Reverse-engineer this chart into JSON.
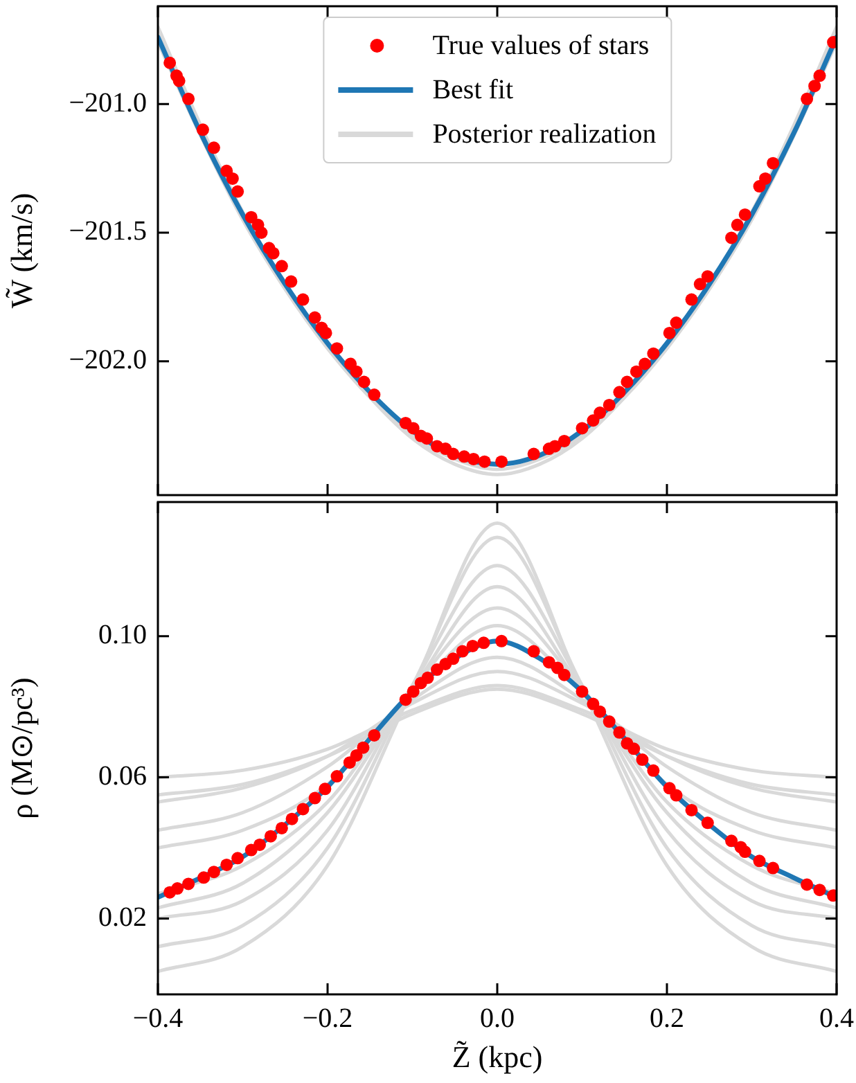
{
  "chart_data": [
    {
      "type": "line",
      "ylabel": "W̃ (km/s)",
      "xlim": [
        -0.4,
        0.4
      ],
      "xticks": [
        {
          "value": -0.4,
          "label": null
        },
        {
          "value": -0.2,
          "label": null
        },
        {
          "value": 0,
          "label": null
        },
        {
          "value": 0.2,
          "label": null
        },
        {
          "value": 0.4,
          "label": null
        }
      ],
      "ylim": [
        -202.52,
        -200.62
      ],
      "yticks": [
        {
          "value": -201,
          "label": "−201.0"
        },
        {
          "value": -201.5,
          "label": "−201.5"
        },
        {
          "value": -202,
          "label": "−202.0"
        }
      ],
      "tick_labels": "y",
      "legend": "top",
      "series": [
        {
          "name": "Posterior realization",
          "marker": "none",
          "color": "#d9d9d9",
          "x": [
            -0.4,
            -0.35,
            -0.3,
            -0.25,
            -0.2,
            -0.15,
            -0.1,
            -0.05,
            0,
            0.05,
            0.1,
            0.15,
            0.2,
            0.25,
            0.3,
            0.35,
            0.4
          ],
          "values": [
            -200.7,
            -201.08,
            -201.42,
            -201.7,
            -201.94,
            -202.14,
            -202.3,
            -202.4,
            -202.44,
            -202.4,
            -202.3,
            -202.14,
            -201.94,
            -201.7,
            -201.42,
            -201.08,
            -200.7
          ]
        },
        {
          "type": "line",
          "marker": "none",
          "color": "#d9d9d9",
          "x": [
            -0.4,
            -0.35,
            -0.3,
            -0.25,
            -0.2,
            -0.15,
            -0.1,
            -0.05,
            0,
            0.05,
            0.1,
            0.15,
            0.2,
            0.25,
            0.3,
            0.35,
            0.4
          ],
          "values": [
            -200.76,
            -201.12,
            -201.45,
            -201.72,
            -201.95,
            -202.14,
            -202.29,
            -202.38,
            -202.42,
            -202.38,
            -202.29,
            -202.14,
            -201.95,
            -201.72,
            -201.45,
            -201.12,
            -200.76
          ]
        },
        {
          "name": "Best fit",
          "type": "line",
          "marker": "none",
          "color": "#1f77b4",
          "x": [
            -0.4,
            -0.35,
            -0.3,
            -0.25,
            -0.2,
            -0.15,
            -0.1,
            -0.05,
            0,
            0.05,
            0.1,
            0.15,
            0.2,
            0.25,
            0.3,
            0.35,
            0.4
          ],
          "values": [
            -200.74,
            -201.11,
            -201.43,
            -201.7,
            -201.93,
            -202.12,
            -202.27,
            -202.365,
            -202.4,
            -202.365,
            -202.27,
            -202.12,
            -201.93,
            -201.7,
            -201.43,
            -201.11,
            -200.74
          ]
        },
        {
          "name": "True values of stars",
          "type": "scatter",
          "marker": "circle",
          "color": "#ff0000",
          "x": [
            -0.386,
            -0.378,
            -0.375,
            -0.364,
            -0.347,
            -0.334,
            -0.319,
            -0.312,
            -0.306,
            -0.29,
            -0.282,
            -0.278,
            -0.269,
            -0.264,
            -0.254,
            -0.243,
            -0.229,
            -0.215,
            -0.207,
            -0.202,
            -0.189,
            -0.173,
            -0.166,
            -0.157,
            -0.145,
            -0.108,
            -0.099,
            -0.09,
            -0.083,
            -0.071,
            -0.061,
            -0.052,
            -0.039,
            -0.028,
            -0.015,
            0.005,
            0.043,
            0.061,
            0.068,
            0.079,
            0.1,
            0.113,
            0.121,
            0.132,
            0.144,
            0.153,
            0.164,
            0.174,
            0.184,
            0.203,
            0.211,
            0.229,
            0.239,
            0.248,
            0.276,
            0.283,
            0.292,
            0.309,
            0.316,
            0.325,
            0.365,
            0.374,
            0.38,
            0.396
          ],
          "values": [
            -200.84,
            -200.89,
            -200.91,
            -200.98,
            -201.1,
            -201.17,
            -201.26,
            -201.29,
            -201.34,
            -201.44,
            -201.47,
            -201.5,
            -201.56,
            -201.58,
            -201.63,
            -201.69,
            -201.76,
            -201.83,
            -201.87,
            -201.89,
            -201.95,
            -202.01,
            -202.04,
            -202.08,
            -202.13,
            -202.24,
            -202.26,
            -202.29,
            -202.3,
            -202.33,
            -202.34,
            -202.36,
            -202.37,
            -202.38,
            -202.39,
            -202.39,
            -202.36,
            -202.34,
            -202.33,
            -202.31,
            -202.26,
            -202.23,
            -202.2,
            -202.17,
            -202.12,
            -202.08,
            -202.04,
            -202.01,
            -201.97,
            -201.89,
            -201.85,
            -201.76,
            -201.7,
            -201.67,
            -201.52,
            -201.47,
            -201.43,
            -201.32,
            -201.29,
            -201.23,
            -200.98,
            -200.93,
            -200.89,
            -200.76
          ]
        }
      ]
    },
    {
      "type": "line",
      "xlabel": "Z̃ (kpc)",
      "ylabel": "ρ (M⊙/pc³)",
      "xlim": [
        -0.4,
        0.4
      ],
      "xticks": [
        {
          "value": -0.4,
          "label": "−0.4"
        },
        {
          "value": -0.2,
          "label": "−0.2"
        },
        {
          "value": 0,
          "label": "0.0"
        },
        0.2,
        0.4
      ],
      "ylim": [
        -0.0015,
        0.138
      ],
      "yticks": [
        0.02,
        0.06,
        {
          "value": 0.1,
          "label": "0.10"
        }
      ],
      "series": [
        {
          "type": "line",
          "marker": "none",
          "color": "#d9d9d9",
          "x": [
            -0.4,
            -0.3,
            -0.2,
            -0.1,
            0,
            0.1,
            0.2,
            0.3,
            0.4
          ],
          "values": [
            0.005,
            0.012,
            0.035,
            0.085,
            0.132,
            0.085,
            0.035,
            0.012,
            0.005
          ]
        },
        {
          "type": "line",
          "marker": "none",
          "color": "#d9d9d9",
          "x": [
            -0.4,
            -0.3,
            -0.2,
            -0.1,
            0,
            0.1,
            0.2,
            0.3,
            0.4
          ],
          "values": [
            0.012,
            0.018,
            0.04,
            0.086,
            0.128,
            0.086,
            0.04,
            0.018,
            0.012
          ]
        },
        {
          "type": "line",
          "marker": "none",
          "color": "#d9d9d9",
          "x": [
            -0.4,
            -0.3,
            -0.2,
            -0.1,
            0,
            0.1,
            0.2,
            0.3,
            0.4
          ],
          "values": [
            0.02,
            0.025,
            0.045,
            0.086,
            0.12,
            0.086,
            0.045,
            0.025,
            0.02
          ]
        },
        {
          "type": "line",
          "marker": "none",
          "color": "#d9d9d9",
          "x": [
            -0.4,
            -0.3,
            -0.2,
            -0.1,
            0,
            0.1,
            0.2,
            0.3,
            0.4
          ],
          "values": [
            0.023,
            0.03,
            0.05,
            0.085,
            0.114,
            0.085,
            0.05,
            0.03,
            0.023
          ]
        },
        {
          "type": "line",
          "marker": "none",
          "color": "#d9d9d9",
          "x": [
            -0.4,
            -0.3,
            -0.2,
            -0.1,
            0,
            0.1,
            0.2,
            0.3,
            0.4
          ],
          "values": [
            0.027,
            0.035,
            0.053,
            0.085,
            0.108,
            0.085,
            0.053,
            0.035,
            0.027
          ]
        },
        {
          "type": "line",
          "marker": "none",
          "color": "#d9d9d9",
          "x": [
            -0.4,
            -0.3,
            -0.2,
            -0.1,
            0,
            0.1,
            0.2,
            0.3,
            0.4
          ],
          "values": [
            0.04,
            0.045,
            0.058,
            0.084,
            0.103,
            0.084,
            0.058,
            0.045,
            0.04
          ]
        },
        {
          "type": "line",
          "marker": "none",
          "color": "#d9d9d9",
          "x": [
            -0.4,
            -0.3,
            -0.2,
            -0.1,
            0,
            0.1,
            0.2,
            0.3,
            0.4
          ],
          "values": [
            0.045,
            0.05,
            0.063,
            0.082,
            0.094,
            0.082,
            0.063,
            0.05,
            0.045
          ]
        },
        {
          "type": "line",
          "marker": "none",
          "color": "#d9d9d9",
          "x": [
            -0.4,
            -0.3,
            -0.2,
            -0.1,
            0,
            0.1,
            0.2,
            0.3,
            0.4
          ],
          "values": [
            0.053,
            0.057,
            0.066,
            0.081,
            0.09,
            0.081,
            0.066,
            0.057,
            0.053
          ]
        },
        {
          "type": "line",
          "marker": "none",
          "color": "#d9d9d9",
          "x": [
            -0.4,
            -0.3,
            -0.2,
            -0.1,
            0,
            0.1,
            0.2,
            0.3,
            0.4
          ],
          "values": [
            0.06,
            0.062,
            0.068,
            0.079,
            0.086,
            0.079,
            0.068,
            0.062,
            0.06
          ]
        },
        {
          "type": "line",
          "marker": "none",
          "color": "#d9d9d9",
          "x": [
            -0.4,
            -0.3,
            -0.2,
            -0.1,
            0,
            0.1,
            0.2,
            0.3,
            0.4
          ],
          "values": [
            0.055,
            0.058,
            0.066,
            0.078,
            0.085,
            0.078,
            0.066,
            0.058,
            0.055
          ]
        },
        {
          "type": "line",
          "marker": "none",
          "color": "#1f77b4",
          "x": [
            -0.4,
            -0.35,
            -0.3,
            -0.25,
            -0.2,
            -0.15,
            -0.1,
            -0.05,
            0,
            0.05,
            0.1,
            0.15,
            0.2,
            0.25,
            0.3,
            0.35,
            0.4
          ],
          "values": [
            0.026,
            0.0315,
            0.0375,
            0.0466,
            0.0573,
            0.071,
            0.0843,
            0.0937,
            0.0986,
            0.0937,
            0.0843,
            0.071,
            0.0573,
            0.0466,
            0.0375,
            0.0315,
            0.026
          ]
        },
        {
          "type": "scatter",
          "marker": "circle",
          "color": "#ff0000",
          "x": [
            -0.386,
            -0.377,
            -0.364,
            -0.346,
            -0.334,
            -0.319,
            -0.306,
            -0.29,
            -0.28,
            -0.267,
            -0.254,
            -0.242,
            -0.229,
            -0.215,
            -0.203,
            -0.189,
            -0.174,
            -0.166,
            -0.158,
            -0.145,
            -0.108,
            -0.099,
            -0.09,
            -0.082,
            -0.071,
            -0.061,
            -0.052,
            -0.041,
            -0.029,
            -0.016,
            0.005,
            0.043,
            0.061,
            0.071,
            0.079,
            0.1,
            0.113,
            0.121,
            0.132,
            0.144,
            0.153,
            0.161,
            0.171,
            0.184,
            0.203,
            0.211,
            0.229,
            0.248,
            0.276,
            0.287,
            0.292,
            0.309,
            0.325,
            0.365,
            0.38,
            0.396
          ],
          "values": [
            0.0274,
            0.0285,
            0.0298,
            0.0316,
            0.0332,
            0.0352,
            0.0371,
            0.0394,
            0.0409,
            0.0433,
            0.0456,
            0.0482,
            0.051,
            0.0541,
            0.0567,
            0.0603,
            0.0642,
            0.0662,
            0.0684,
            0.0719,
            0.082,
            0.0843,
            0.0867,
            0.0882,
            0.0905,
            0.0921,
            0.0936,
            0.0957,
            0.0972,
            0.0981,
            0.0986,
            0.0957,
            0.0926,
            0.091,
            0.089,
            0.0843,
            0.0808,
            0.0786,
            0.0758,
            0.0727,
            0.0696,
            0.0681,
            0.065,
            0.0619,
            0.0569,
            0.0549,
            0.0507,
            0.0471,
            0.042,
            0.0402,
            0.0389,
            0.0363,
            0.0343,
            0.0296,
            0.0281,
            0.0265
          ]
        }
      ]
    }
  ]
}
